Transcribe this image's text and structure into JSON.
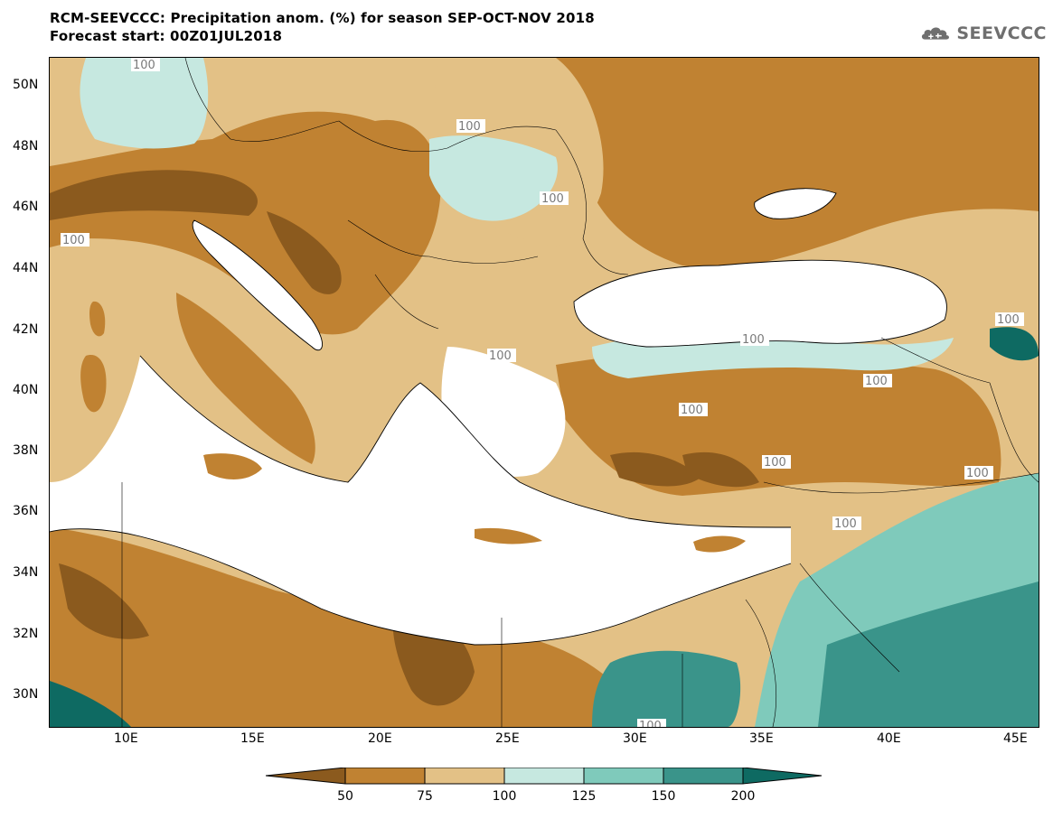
{
  "header": {
    "title_line1": "RCM-SEEVCCC: Precipitation anom. (%) for season SEP-OCT-NOV 2018",
    "title_line2": "Forecast start: 00Z01JUL2018",
    "logo_text": "SEEVCCC",
    "logo_icon": "cloud-icon"
  },
  "map": {
    "latitude_ticks": [
      "50N",
      "48N",
      "46N",
      "44N",
      "42N",
      "40N",
      "38N",
      "36N",
      "34N",
      "32N",
      "30N"
    ],
    "longitude_ticks": [
      "10E",
      "15E",
      "20E",
      "25E",
      "30E",
      "35E",
      "40E",
      "45E"
    ],
    "contour_label": "100"
  },
  "legend": {
    "bins": [
      {
        "color": "#8b5a1e",
        "label": "50"
      },
      {
        "color": "#c08232",
        "label": "75"
      },
      {
        "color": "#e3c186",
        "label": "100"
      },
      {
        "color": "#c6e8e0",
        "label": "125"
      },
      {
        "color": "#7fcabb",
        "label": "150"
      },
      {
        "color": "#3a948a",
        "label": "200"
      },
      {
        "color": "#0e6a62",
        "label": ""
      }
    ]
  },
  "colors": {
    "sea": "#ffffff",
    "border": "#000000",
    "contour_line": "#a8b3c0"
  }
}
